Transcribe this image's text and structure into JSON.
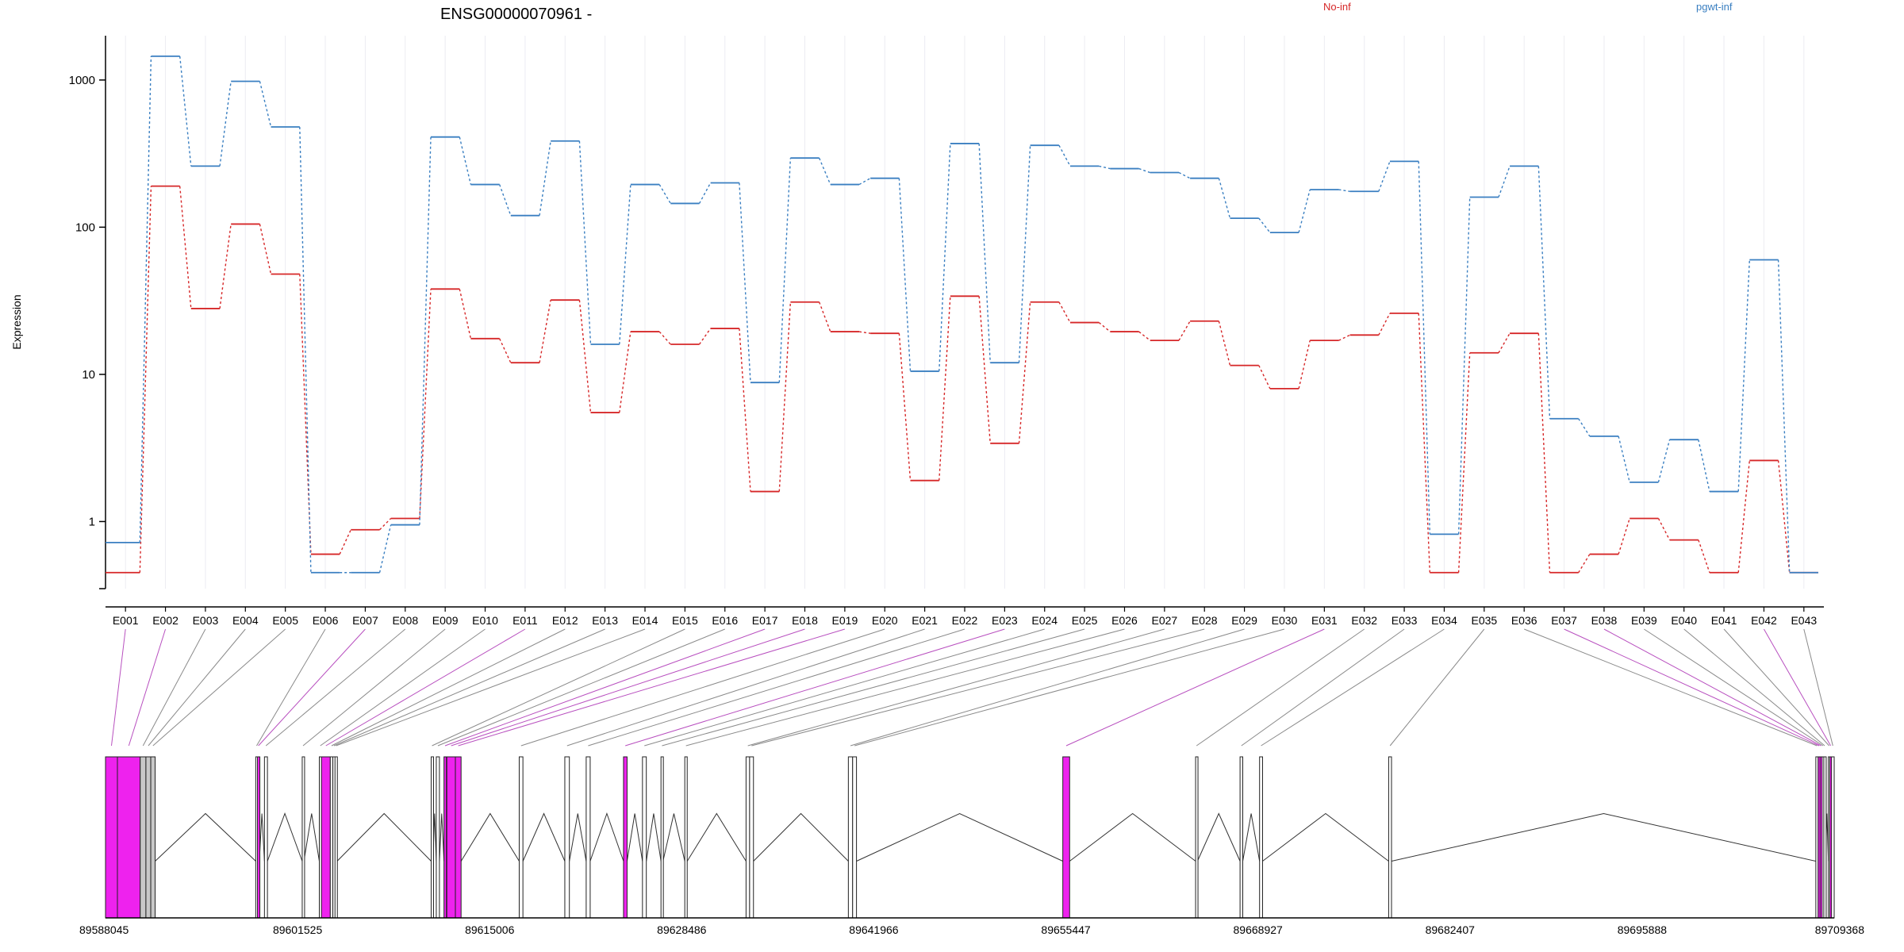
{
  "colors": {
    "no_inf": "#d62728",
    "pgwt_inf": "#3a7fc1",
    "exon_highlight": "#ee22ee",
    "exon_fill": "#ffffff",
    "exon_gray": "#c8c8c8",
    "axis": "#000000",
    "connector_gray": "#8a8a8a",
    "connector_magenta": "#b84fbf",
    "grid": "#ececf2"
  },
  "chart_data": {
    "type": "line",
    "title": "ENSG00000070961 -",
    "ylabel": "Expression",
    "yscale": "log",
    "ylim": [
      0.35,
      2000
    ],
    "yticks": [
      1,
      10,
      100,
      1000
    ],
    "ytick_labels": [
      "1",
      "10",
      "100",
      "1000"
    ],
    "grid": "vertical-light",
    "legend": [
      "No-inf",
      "pgwt-inf"
    ],
    "legend_placement": "top-right",
    "categories": [
      "E001",
      "E002",
      "E003",
      "E004",
      "E005",
      "E006",
      "E007",
      "E008",
      "E009",
      "E010",
      "E011",
      "E012",
      "E013",
      "E014",
      "E015",
      "E016",
      "E017",
      "E018",
      "E019",
      "E020",
      "E021",
      "E022",
      "E023",
      "E024",
      "E025",
      "E026",
      "E027",
      "E028",
      "E029",
      "E030",
      "E031",
      "E032",
      "E033",
      "E034",
      "E035",
      "E036",
      "E037",
      "E038",
      "E039",
      "E040",
      "E041",
      "E042",
      "E043"
    ],
    "series": [
      {
        "name": "No-inf",
        "color": "#d62728",
        "values": [
          0.45,
          190,
          28,
          105,
          48,
          0.6,
          0.88,
          1.05,
          38,
          17.5,
          12,
          32,
          5.5,
          19.5,
          16,
          20.5,
          1.6,
          31,
          19.5,
          19,
          1.9,
          34,
          3.4,
          31,
          22.5,
          19.5,
          17,
          23,
          11.5,
          8,
          17,
          18.5,
          26,
          0.45,
          14,
          19,
          0.45,
          0.6,
          1.05,
          0.75,
          0.45,
          2.6,
          0.45
        ]
      },
      {
        "name": "pgwt-inf",
        "color": "#3a7fc1",
        "values": [
          0.72,
          1450,
          260,
          980,
          480,
          0.45,
          0.45,
          0.95,
          410,
          195,
          120,
          385,
          16,
          195,
          145,
          200,
          8.8,
          295,
          195,
          215,
          10.5,
          370,
          12,
          360,
          260,
          250,
          235,
          215,
          115,
          92,
          180,
          175,
          280,
          0.82,
          160,
          260,
          5,
          3.8,
          1.85,
          3.6,
          1.6,
          60,
          0.45
        ]
      }
    ],
    "gene_model": {
      "genomic_ticks": [
        89588045,
        89601525,
        89615006,
        89628486,
        89641966,
        89655447,
        89668927,
        89682407,
        89695888,
        89709368
      ],
      "genomic_tick_labels": [
        "89588045",
        "89601525",
        "89615006",
        "89628486",
        "89641966",
        "89655447",
        "89668927",
        "89682407",
        "89695888",
        "89709368"
      ],
      "exons": [
        {
          "id": "E001",
          "start": 89588045,
          "end": 89588880,
          "highlight": true
        },
        {
          "id": "E002",
          "start": 89588880,
          "end": 89590480,
          "highlight": true
        },
        {
          "id": "E003",
          "start": 89590480,
          "end": 89590880,
          "highlight": false,
          "gray": true
        },
        {
          "id": "E004",
          "start": 89590880,
          "end": 89591220,
          "highlight": false,
          "gray": true
        },
        {
          "id": "E005",
          "start": 89591220,
          "end": 89591530,
          "highlight": false,
          "gray": true
        },
        {
          "id": "E006",
          "start": 89598590,
          "end": 89598710,
          "highlight": false
        },
        {
          "id": "E007",
          "start": 89598710,
          "end": 89598840,
          "highlight": true
        },
        {
          "id": "E008",
          "start": 89599200,
          "end": 89599410,
          "highlight": false
        },
        {
          "id": "E009",
          "start": 89601850,
          "end": 89601970,
          "highlight": false
        },
        {
          "id": "E010",
          "start": 89603050,
          "end": 89603190,
          "highlight": false
        },
        {
          "id": "E011",
          "start": 89603200,
          "end": 89603820,
          "highlight": true
        },
        {
          "id": "E012",
          "start": 89603820,
          "end": 89604000,
          "highlight": false
        },
        {
          "id": "E013",
          "start": 89604000,
          "end": 89604150,
          "highlight": false
        },
        {
          "id": "E014",
          "start": 89604150,
          "end": 89604300,
          "highlight": false
        },
        {
          "id": "E015",
          "start": 89610900,
          "end": 89611020,
          "highlight": false
        },
        {
          "id": "E016",
          "start": 89611260,
          "end": 89611480,
          "highlight": false
        },
        {
          "id": "E017",
          "start": 89611800,
          "end": 89611950,
          "highlight": true
        },
        {
          "id": "E018",
          "start": 89612000,
          "end": 89612600,
          "highlight": true
        },
        {
          "id": "E019",
          "start": 89612600,
          "end": 89613000,
          "highlight": true
        },
        {
          "id": "E020",
          "start": 89617080,
          "end": 89617340,
          "highlight": false
        },
        {
          "id": "E021",
          "start": 89620280,
          "end": 89620600,
          "highlight": false
        },
        {
          "id": "E022",
          "start": 89621780,
          "end": 89622060,
          "highlight": false
        },
        {
          "id": "E023",
          "start": 89624400,
          "end": 89624650,
          "highlight": true
        },
        {
          "id": "E024",
          "start": 89625730,
          "end": 89626000,
          "highlight": false
        },
        {
          "id": "E025",
          "start": 89627030,
          "end": 89627170,
          "highlight": false
        },
        {
          "id": "E026",
          "start": 89628700,
          "end": 89628870,
          "highlight": false
        },
        {
          "id": "E027",
          "start": 89633000,
          "end": 89633250,
          "highlight": false
        },
        {
          "id": "E028",
          "start": 89633250,
          "end": 89633520,
          "highlight": false
        },
        {
          "id": "E029",
          "start": 89640180,
          "end": 89640480,
          "highlight": false
        },
        {
          "id": "E030",
          "start": 89640480,
          "end": 89640750,
          "highlight": false
        },
        {
          "id": "E031",
          "start": 89655230,
          "end": 89655710,
          "highlight": true
        },
        {
          "id": "E032",
          "start": 89664550,
          "end": 89664680,
          "highlight": false
        },
        {
          "id": "E033",
          "start": 89667670,
          "end": 89667860,
          "highlight": false
        },
        {
          "id": "E034",
          "start": 89669040,
          "end": 89669250,
          "highlight": false
        },
        {
          "id": "E035",
          "start": 89678100,
          "end": 89678300,
          "highlight": false
        },
        {
          "id": "E036",
          "start": 89708080,
          "end": 89708240,
          "highlight": false
        },
        {
          "id": "E037",
          "start": 89708240,
          "end": 89708380,
          "highlight": true
        },
        {
          "id": "E038",
          "start": 89708380,
          "end": 89708520,
          "highlight": true
        },
        {
          "id": "E039",
          "start": 89708520,
          "end": 89708640,
          "highlight": false
        },
        {
          "id": "E040",
          "start": 89708640,
          "end": 89708760,
          "highlight": false
        },
        {
          "id": "E041",
          "start": 89708960,
          "end": 89709060,
          "highlight": false
        },
        {
          "id": "E042",
          "start": 89709060,
          "end": 89709180,
          "highlight": true
        },
        {
          "id": "E043",
          "start": 89709180,
          "end": 89709368,
          "highlight": false
        }
      ]
    }
  }
}
